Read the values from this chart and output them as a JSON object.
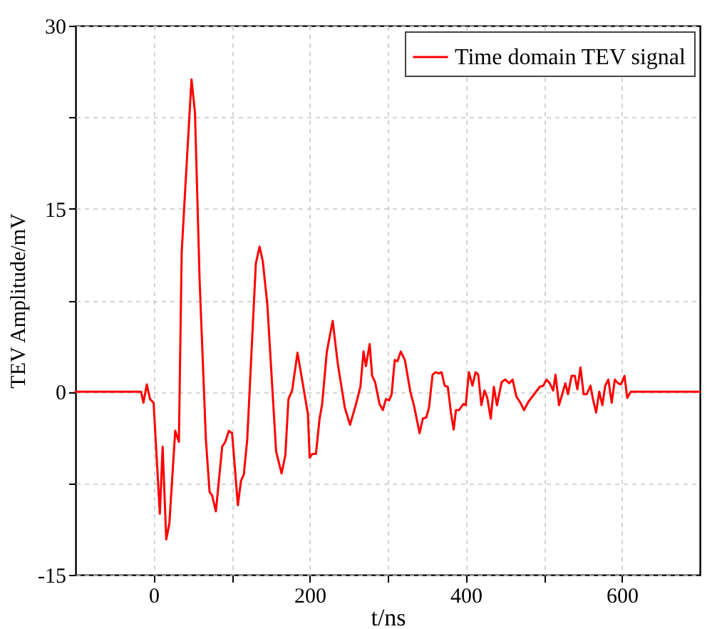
{
  "chart_data": {
    "type": "line",
    "xlabel": "t/ns",
    "ylabel": "TEV Amplitude/mV",
    "xlim": [
      -100,
      700
    ],
    "ylim": [
      -15,
      30
    ],
    "xticks": [
      0,
      {
        "value": 100,
        "label": null
      },
      200,
      {
        "value": 300,
        "label": null
      },
      400,
      {
        "value": 500,
        "label": null
      },
      600
    ],
    "yticks": [
      -15,
      {
        "value": -7.5,
        "label": null
      },
      0,
      {
        "value": 7.5,
        "label": null
      },
      15,
      {
        "value": 22.5,
        "label": null
      },
      30
    ],
    "grid": true,
    "legend": "top right",
    "line_style": "solid",
    "marker": "none",
    "x": [
      -100,
      -16,
      -13,
      -8.7,
      -4.6,
      0,
      8,
      11.6,
      16.2,
      20.2,
      27.7,
      32.4,
      36,
      40,
      48.6,
      53,
      59,
      67,
      71.7,
      75,
      79.8,
      87.9,
      91.9,
      96.5,
      100.6,
      108,
      112,
      115.6,
      120,
      131,
      135.8,
      139.9,
      145.7,
      157,
      164,
      168.8,
      172.8,
      177.5,
      184.4,
      197.7,
      200,
      203.5,
      208,
      212.7,
      216,
      222,
      229.5,
      236,
      245,
      251.7,
      259,
      265,
      269,
      272,
      276.9,
      280,
      283.8,
      289.5,
      293.7,
      297.7,
      302,
      305,
      309,
      312.6,
      316.7,
      322,
      329,
      333.9,
      340.8,
      345,
      349.4,
      352.9,
      357.5,
      361.5,
      365.5,
      369,
      373,
      377,
      381,
      384.5,
      387.4,
      391.4,
      397,
      400,
      404,
      408.6,
      412.6,
      416,
      420,
      424,
      427.6,
      432,
      436,
      440,
      446,
      450.6,
      455.7,
      460,
      464.9,
      470,
      474.7,
      480.5,
      494.8,
      499.4,
      503.4,
      507.5,
      512,
      515,
      519.5,
      523.6,
      527.6,
      531,
      535.6,
      539.7,
      543,
      547,
      551,
      555,
      559.8,
      563,
      567,
      571,
      575,
      578.7,
      582.7,
      587,
      591,
      595,
      598.9,
      603.4,
      606.9,
      611.5,
      700
    ],
    "series": [
      {
        "name": "Time domain TEV signal",
        "color": "#ff0000",
        "values": [
          0,
          0,
          -0.9,
          0.6,
          -0.6,
          -0.9,
          -10,
          -4.5,
          -12.1,
          -10.8,
          -3.2,
          -4.1,
          11.4,
          16,
          25.6,
          22.9,
          9.1,
          -3.9,
          -8.2,
          -8.5,
          -9.8,
          -4.5,
          -4.1,
          -3.2,
          -3.4,
          -9.3,
          -7.3,
          -6.8,
          -3.9,
          10.5,
          11.9,
          10.7,
          7.2,
          -4.9,
          -6.7,
          -5.2,
          -0.6,
          0.1,
          3.2,
          -1.8,
          -5.4,
          -5.1,
          -5.1,
          -2.2,
          -1.0,
          3.3,
          5.8,
          2.3,
          -1.3,
          -2.7,
          -1.1,
          0.4,
          3.3,
          2.1,
          3.9,
          1.3,
          0.8,
          -1.0,
          -1.5,
          -0.6,
          -0.7,
          -0.2,
          2.6,
          2.5,
          3.3,
          2.6,
          0,
          -1.2,
          -3.4,
          -2.2,
          -2.1,
          -1.3,
          1.4,
          1.6,
          1.5,
          1.6,
          0.5,
          0.4,
          -1.7,
          -3.1,
          -1.5,
          -1.5,
          -1.0,
          -1.1,
          1.6,
          0.5,
          1.6,
          1.4,
          -1.1,
          0.1,
          -0.5,
          -2.2,
          0.4,
          -1.1,
          0.8,
          1.0,
          0.7,
          1.0,
          -0.4,
          -0.9,
          -1.5,
          -0.8,
          0.4,
          0.5,
          1.0,
          0.7,
          0.1,
          1.4,
          -1.1,
          -0.2,
          0.7,
          -0.2,
          1.3,
          1.3,
          0.2,
          2.0,
          -0.2,
          -0.2,
          0.5,
          -0.6,
          -1.7,
          0,
          -1.1,
          0.5,
          1.0,
          -0.9,
          1.0,
          0.7,
          0.6,
          1.3,
          -0.5,
          0,
          0
        ]
      }
    ]
  }
}
